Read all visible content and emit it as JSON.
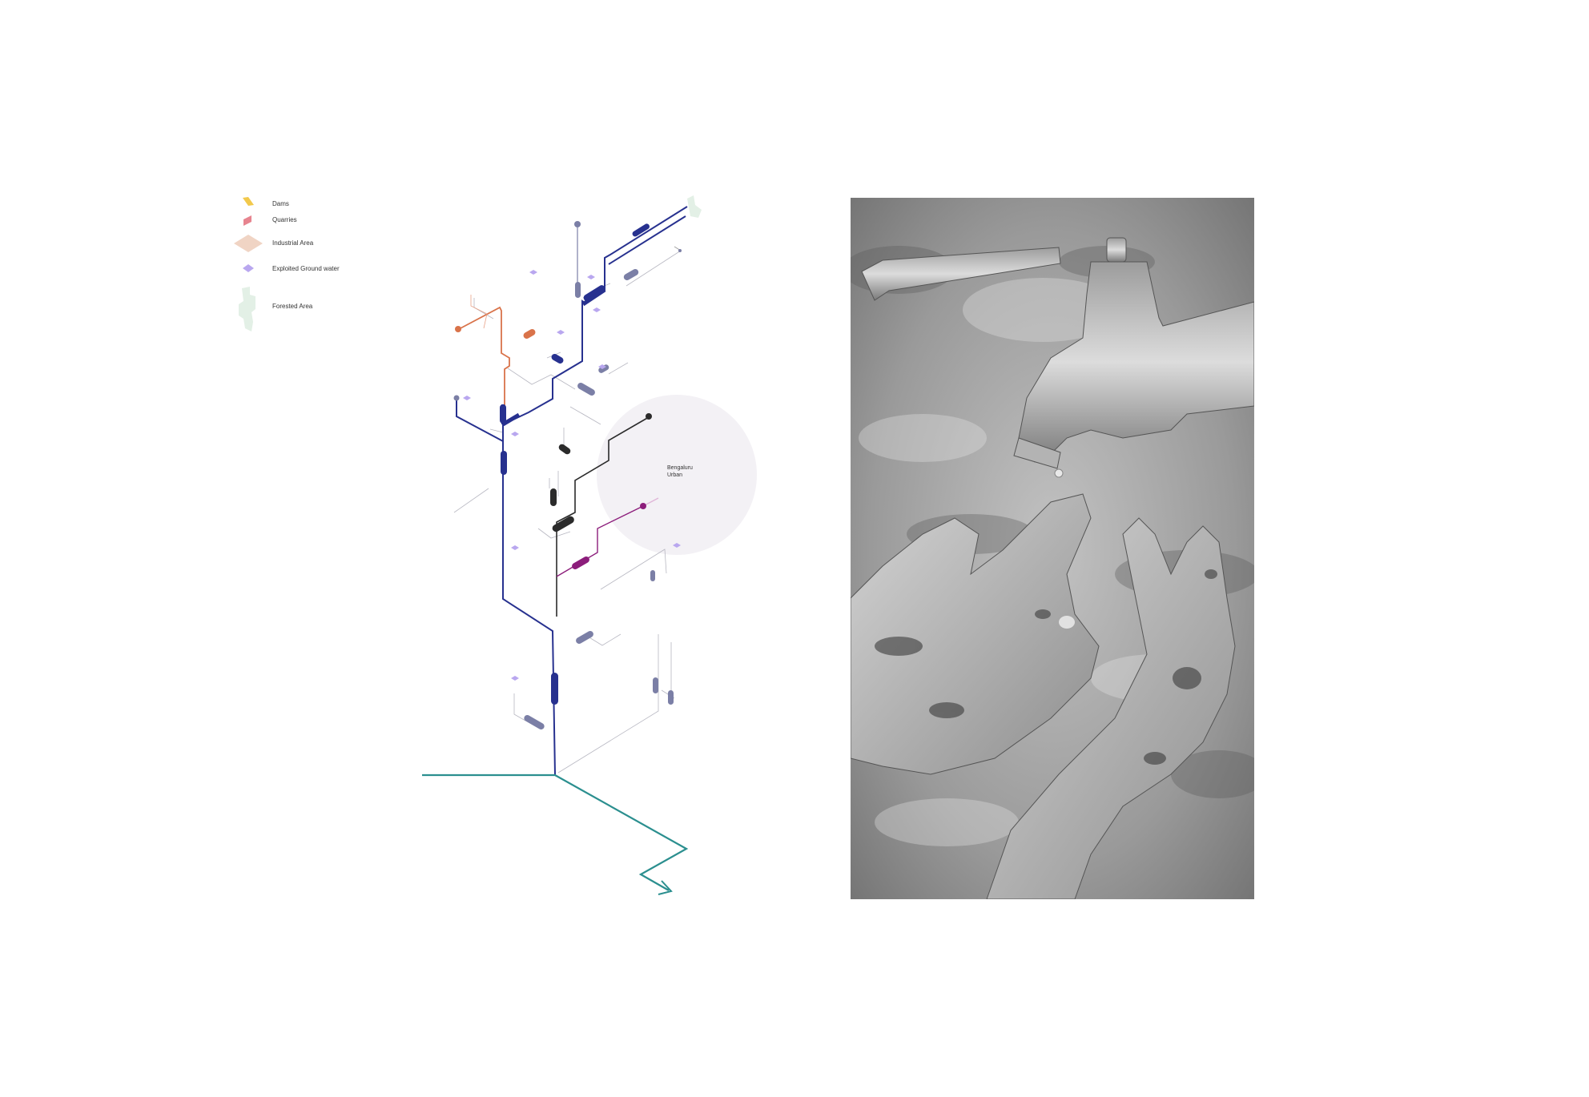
{
  "legend": {
    "items": [
      {
        "id": "dams",
        "label": "Dams",
        "color": "#f2c94c"
      },
      {
        "id": "quarries",
        "label": "Quarries",
        "color": "#e7848f"
      },
      {
        "id": "industrial",
        "label": "Industrial Area",
        "color": "#f0d4c4"
      },
      {
        "id": "groundwater",
        "label": "Exploited Ground water",
        "color": "#b9a7ef"
      },
      {
        "id": "forest",
        "label": "Forested Area",
        "color": "#e3f0e6"
      }
    ]
  },
  "diagram": {
    "city_label_line1": "Bengaluru",
    "city_label_line2": "Urban",
    "colors": {
      "main_river": "#27318f",
      "orange_branch": "#d9734a",
      "dark_branch": "#2b2b2b",
      "magenta_branch": "#8c1d7b",
      "outflow": "#2b8f8f",
      "reservoir_grey": "#7b7fa6",
      "circle_fill": "#f3f1f5",
      "groundwater": "#b9a7ef"
    }
  },
  "photo": {
    "subject": "hands-under-tap"
  }
}
